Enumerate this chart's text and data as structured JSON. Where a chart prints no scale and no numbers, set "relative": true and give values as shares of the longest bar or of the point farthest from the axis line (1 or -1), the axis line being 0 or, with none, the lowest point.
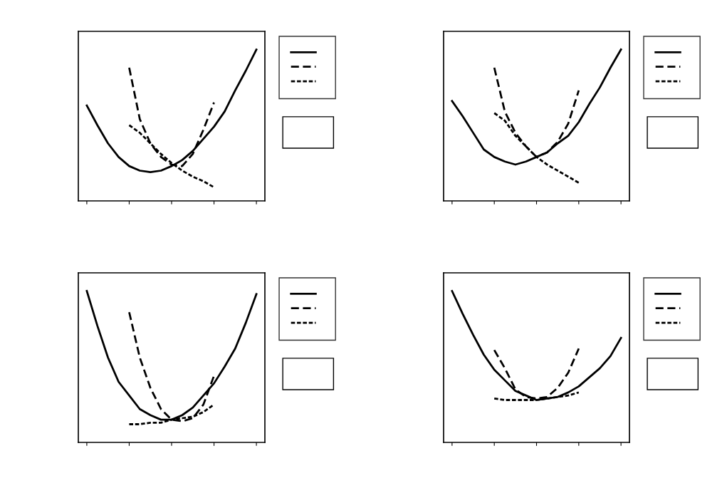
{
  "chart_data": [
    {
      "type": "line",
      "relative": true,
      "grid": false,
      "categories": [
        null,
        null,
        null,
        null,
        null,
        null,
        null,
        null,
        null,
        null,
        null,
        null,
        null,
        null,
        null,
        null,
        null
      ],
      "series": [
        {
          "color": "#000000",
          "line_style": "solid",
          "values": [
            0.63,
            0.5,
            0.38,
            0.29,
            0.23,
            0.2,
            0.19,
            0.2,
            0.23,
            0.27,
            0.33,
            0.41,
            0.49,
            0.59,
            0.73,
            0.86,
            1
          ]
        },
        {
          "color": "#000000",
          "line_style": "dashed",
          "values": [
            null,
            null,
            null,
            null,
            0.88,
            0.54,
            0.38,
            0.29,
            0.24,
            0.23,
            0.31,
            0.47,
            0.65,
            null,
            null,
            null,
            null
          ]
        },
        {
          "color": "#000000",
          "line_style": "dotted",
          "values": [
            null,
            null,
            null,
            null,
            0.5,
            0.45,
            0.38,
            0.31,
            0.25,
            0.2,
            0.16,
            0.13,
            0.09,
            null,
            null,
            null,
            null
          ]
        }
      ]
    },
    {
      "type": "line",
      "relative": true,
      "grid": false,
      "categories": [
        null,
        null,
        null,
        null,
        null,
        null,
        null,
        null,
        null,
        null,
        null,
        null,
        null,
        null,
        null,
        null,
        null
      ],
      "series": [
        {
          "color": "#000000",
          "line_style": "solid",
          "values": [
            0.66,
            0.56,
            0.45,
            0.34,
            0.29,
            0.26,
            0.24,
            0.26,
            0.29,
            0.32,
            0.38,
            0.43,
            0.52,
            0.64,
            0.75,
            0.88,
            1
          ]
        },
        {
          "color": "#000000",
          "line_style": "dashed",
          "values": [
            null,
            null,
            null,
            null,
            0.88,
            0.59,
            0.45,
            0.36,
            0.29,
            0.32,
            0.39,
            0.51,
            0.73,
            null,
            null,
            null,
            null
          ]
        },
        {
          "color": "#000000",
          "line_style": "dotted",
          "values": [
            null,
            null,
            null,
            null,
            0.58,
            0.53,
            0.43,
            0.36,
            0.29,
            0.24,
            0.2,
            0.16,
            0.12,
            null,
            null,
            null,
            null
          ]
        }
      ]
    },
    {
      "type": "line",
      "relative": true,
      "grid": false,
      "categories": [
        null,
        null,
        null,
        null,
        null,
        null,
        null,
        null,
        null,
        null,
        null,
        null,
        null,
        null,
        null,
        null,
        null
      ],
      "series": [
        {
          "color": "#000000",
          "line_style": "solid",
          "values": [
            1,
            0.77,
            0.56,
            0.4,
            0.31,
            0.22,
            0.18,
            0.15,
            0.15,
            0.18,
            0.23,
            0.31,
            0.39,
            0.5,
            0.62,
            0.79,
            0.98
          ]
        },
        {
          "color": "#000000",
          "line_style": "dashed",
          "values": [
            null,
            null,
            null,
            null,
            0.86,
            0.56,
            0.36,
            0.22,
            0.15,
            0.14,
            0.16,
            0.25,
            0.44,
            null,
            null,
            null,
            null
          ]
        },
        {
          "color": "#000000",
          "line_style": "dotted",
          "values": [
            null,
            null,
            null,
            null,
            0.12,
            0.12,
            0.13,
            0.13,
            0.15,
            0.16,
            0.17,
            0.2,
            0.25,
            null,
            null,
            null,
            null
          ]
        }
      ]
    },
    {
      "type": "line",
      "relative": true,
      "grid": false,
      "categories": [
        null,
        null,
        null,
        null,
        null,
        null,
        null,
        null,
        null,
        null,
        null,
        null,
        null,
        null,
        null,
        null,
        null
      ],
      "series": [
        {
          "color": "#000000",
          "line_style": "solid",
          "values": [
            1,
            0.85,
            0.71,
            0.58,
            0.48,
            0.41,
            0.34,
            0.31,
            0.28,
            0.29,
            0.3,
            0.33,
            0.37,
            0.43,
            0.49,
            0.57,
            0.69
          ]
        },
        {
          "color": "#000000",
          "line_style": "dashed",
          "values": [
            null,
            null,
            null,
            null,
            0.61,
            0.49,
            0.35,
            0.3,
            0.29,
            0.3,
            0.36,
            0.46,
            0.62,
            null,
            null,
            null,
            null
          ]
        },
        {
          "color": "#000000",
          "line_style": "dotted",
          "values": [
            null,
            null,
            null,
            null,
            0.29,
            0.28,
            0.28,
            0.28,
            0.28,
            0.29,
            0.3,
            0.31,
            0.33,
            null,
            null,
            null,
            null
          ]
        }
      ]
    }
  ]
}
